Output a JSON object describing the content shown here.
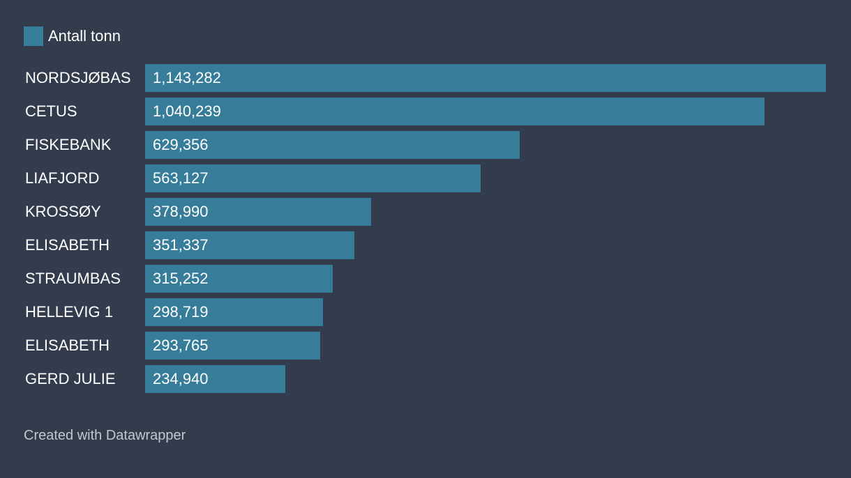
{
  "colors": {
    "background": "#333c4c",
    "bar": "#377c98"
  },
  "legend": {
    "label": "Antall tonn"
  },
  "credit": "Created with Datawrapper",
  "chart_data": {
    "type": "bar",
    "orientation": "horizontal",
    "title": "",
    "xlabel": "",
    "ylabel": "",
    "xlim": [
      0,
      1143282
    ],
    "series": [
      {
        "name": "Antall tonn",
        "values": [
          1143282,
          1040239,
          629356,
          563127,
          378990,
          351337,
          315252,
          298719,
          293765,
          234940
        ]
      }
    ],
    "categories": [
      "NORDSJØBAS",
      "CETUS",
      "FISKEBANK",
      "LIAFJORD",
      "KROSSØY",
      "ELISABETH",
      "STRAUMBAS",
      "HELLEVIG 1",
      "ELISABETH",
      "GERD JULIE"
    ],
    "value_labels": [
      "1,143,282",
      "1,040,239",
      "629,356",
      "563,127",
      "378,990",
      "351,337",
      "315,252",
      "298,719",
      "293,765",
      "234,940"
    ],
    "legend_position": "top-left"
  }
}
